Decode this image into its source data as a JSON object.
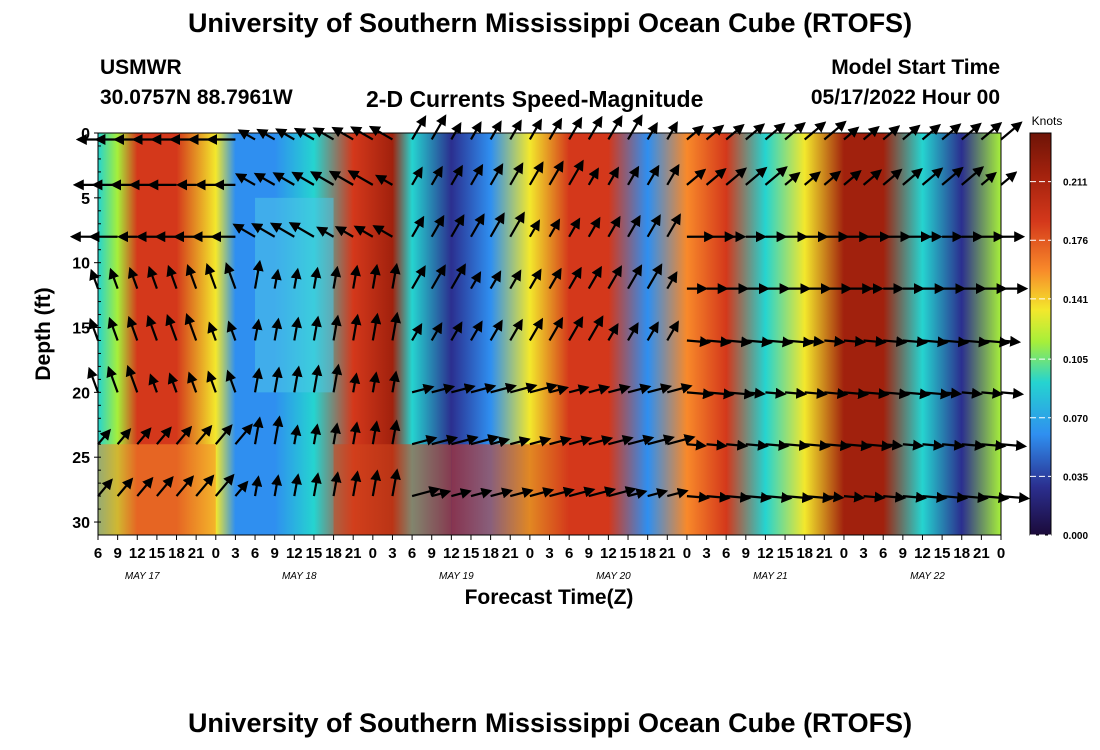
{
  "header": {
    "title": "University of Southern Mississippi Ocean Cube (RTOFS)",
    "station": "USMWR",
    "coords": "30.0757N  88.7961W",
    "subtitle": "2-D Currents Speed-Magnitude",
    "model_start_label": "Model Start Time",
    "model_start_value": "05/17/2022 Hour 00"
  },
  "footer": {
    "title": "University of Southern Mississippi Ocean Cube (RTOFS)"
  },
  "chart_data": {
    "type": "heatmap",
    "title": "2-D Currents Speed-Magnitude",
    "xlabel": "Forecast Time(Z)",
    "ylabel": "Depth (ft)",
    "ylim": [
      0,
      31
    ],
    "y_ticks": [
      0,
      5,
      10,
      15,
      20,
      25,
      30
    ],
    "x_tick_labels": [
      "6",
      "9",
      "12",
      "15",
      "18",
      "21",
      "0",
      "3",
      "6",
      "9",
      "12",
      "15",
      "18",
      "21",
      "0",
      "3",
      "6",
      "9",
      "12",
      "15",
      "18",
      "21",
      "0",
      "3",
      "6",
      "9",
      "12",
      "15",
      "18",
      "21",
      "0",
      "3",
      "6",
      "9",
      "12",
      "15",
      "18",
      "21",
      "0",
      "3",
      "6",
      "9",
      "12",
      "15",
      "18",
      "21",
      "0"
    ],
    "day_labels": [
      "MAY 17",
      "MAY 18",
      "MAY 19",
      "MAY 20",
      "MAY 21",
      "MAY 22"
    ],
    "colorbar": {
      "label": "Knots",
      "ticks": [
        "0.211",
        "0.176",
        "0.141",
        "0.105",
        "0.070",
        "0.035",
        "0.000"
      ],
      "range": [
        0,
        0.24
      ]
    },
    "time_hours": [
      6,
      30,
      42,
      54,
      78,
      102,
      126,
      138
    ],
    "speed_profile_knots": [
      {
        "t": 6,
        "v": 0.09
      },
      {
        "t": 9,
        "v": 0.11
      },
      {
        "t": 12,
        "v": 0.19
      },
      {
        "t": 18,
        "v": 0.2
      },
      {
        "t": 24,
        "v": 0.14
      },
      {
        "t": 27,
        "v": 0.06
      },
      {
        "t": 33,
        "v": 0.05
      },
      {
        "t": 39,
        "v": 0.08
      },
      {
        "t": 45,
        "v": 0.18
      },
      {
        "t": 51,
        "v": 0.22
      },
      {
        "t": 54,
        "v": 0.08
      },
      {
        "t": 60,
        "v": 0.04
      },
      {
        "t": 66,
        "v": 0.07
      },
      {
        "t": 72,
        "v": 0.13
      },
      {
        "t": 78,
        "v": 0.18
      },
      {
        "t": 84,
        "v": 0.19
      },
      {
        "t": 90,
        "v": 0.07
      },
      {
        "t": 96,
        "v": 0.15
      },
      {
        "t": 102,
        "v": 0.18
      },
      {
        "t": 108,
        "v": 0.08
      },
      {
        "t": 114,
        "v": 0.14
      },
      {
        "t": 120,
        "v": 0.21
      },
      {
        "t": 126,
        "v": 0.22
      },
      {
        "t": 132,
        "v": 0.09
      },
      {
        "t": 138,
        "v": 0.03
      },
      {
        "t": 144,
        "v": 0.12
      }
    ]
  }
}
